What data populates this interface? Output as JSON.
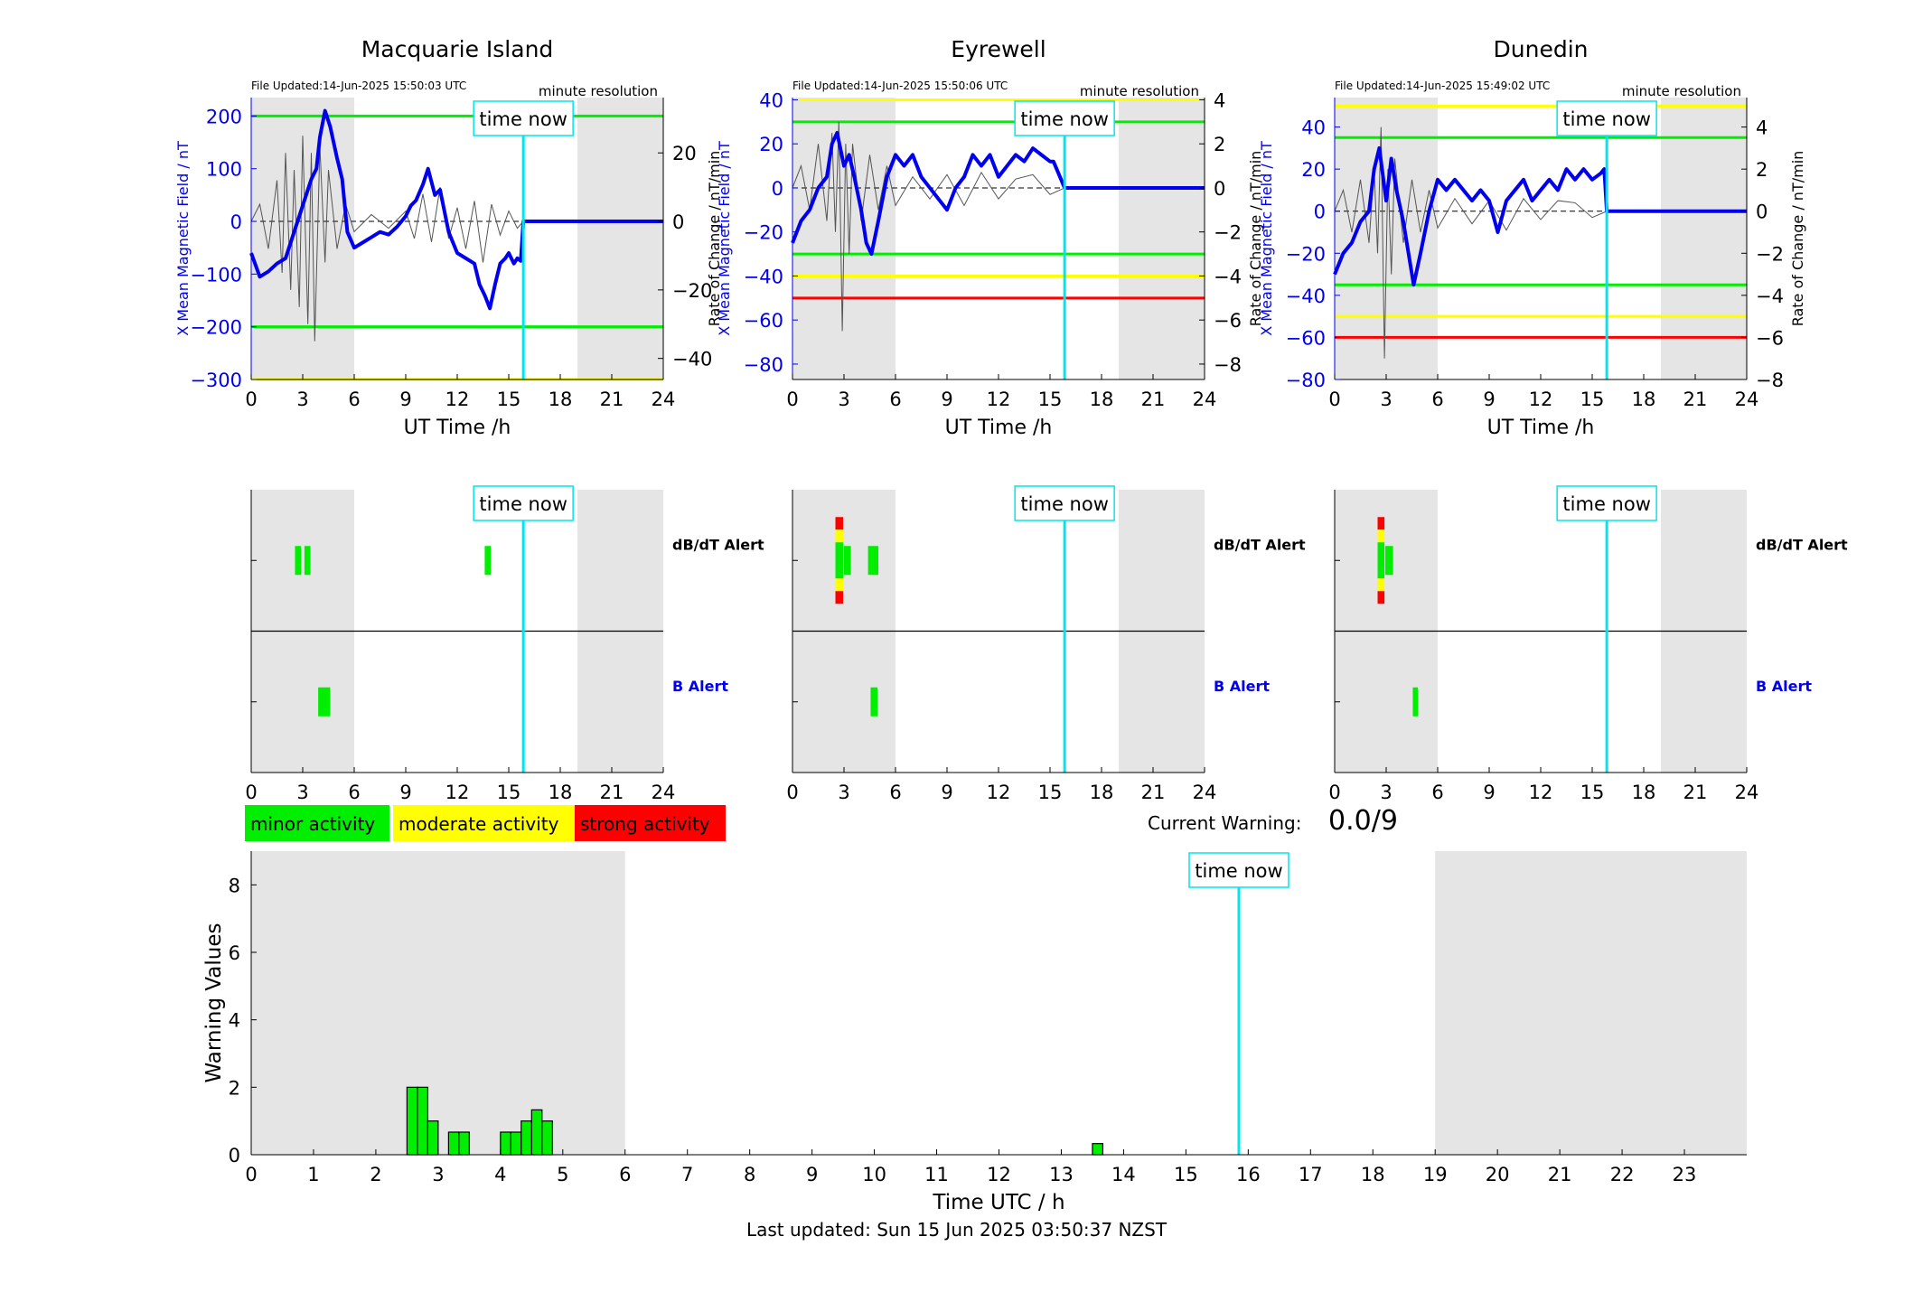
{
  "page": {
    "last_updated": "Last updated: Sun 15 Jun 2025 03:50:37 NZST",
    "current_warning_label": "Current Warning:",
    "current_warning_value": "0.0/9"
  },
  "colors": {
    "night_shade": "#e5e5e5",
    "time_now": "#00e5ee",
    "x_field_line": "#0000ee",
    "rate_line": "#555555",
    "minor": "#00ee00",
    "moderate": "#ffff00",
    "strong": "#ff0000",
    "b_alert_label": "#0000ee"
  },
  "legend": [
    {
      "label": "minor activity",
      "color": "#00ee00"
    },
    {
      "label": "moderate activity",
      "color": "#ffff00"
    },
    {
      "label": "strong activity",
      "color": "#ff0000"
    }
  ],
  "chart_data": [
    {
      "type": "line",
      "panel": "magnetometer",
      "station": "Macquarie Island",
      "title": "Macquarie Island",
      "file_updated": "File Updated:14-Jun-2025 15:50:03 UTC",
      "resolution_label": "minute resolution",
      "time_now_label": "time now",
      "time_now": 15.85,
      "night_shading": [
        [
          0,
          6
        ],
        [
          19,
          24
        ]
      ],
      "xlabel": "UT Time /h",
      "xlim": [
        0,
        24
      ],
      "xticks": [
        0,
        3,
        6,
        9,
        12,
        15,
        18,
        21,
        24
      ],
      "ylabel_left": "X Mean Magnetic Field / nT",
      "ylim_left": [
        -300,
        235
      ],
      "yticks_left": [
        -300,
        -200,
        -100,
        0,
        100,
        200
      ],
      "ylabel_right": "Rate of Change / nT/min",
      "ylim_right": [
        -46.15,
        36.15
      ],
      "yticks_right": [
        -40,
        -20,
        0,
        20
      ],
      "thresholds": [
        {
          "value": 200,
          "color": "#00ee00"
        },
        {
          "value": -200,
          "color": "#00ee00"
        },
        {
          "value": -300,
          "color": "#ffff00"
        }
      ],
      "series": [
        {
          "axis": "left",
          "x": [
            0,
            0.5,
            1,
            1.5,
            2,
            2.5,
            3,
            3.5,
            3.8,
            4,
            4.3,
            4.6,
            5,
            5.3,
            5.6,
            6,
            6.5,
            7,
            7.5,
            8,
            8.5,
            9,
            9.3,
            9.6,
            10,
            10.3,
            10.7,
            11,
            11.5,
            12,
            12.5,
            13,
            13.3,
            13.6,
            13.9,
            14.2,
            14.5,
            14.8,
            15,
            15.3,
            15.5,
            15.7,
            15.85,
            24
          ],
          "values": [
            -60,
            -105,
            -95,
            -80,
            -70,
            -20,
            30,
            80,
            100,
            160,
            210,
            180,
            120,
            80,
            -20,
            -50,
            -40,
            -30,
            -20,
            -25,
            -10,
            10,
            30,
            40,
            70,
            100,
            50,
            60,
            -20,
            -60,
            -70,
            -80,
            -120,
            -140,
            -165,
            -120,
            -80,
            -70,
            -60,
            -80,
            -70,
            -75,
            0,
            0
          ]
        },
        {
          "axis": "right",
          "x": [
            0,
            0.5,
            1,
            1.5,
            1.8,
            2,
            2.3,
            2.5,
            2.8,
            3,
            3.3,
            3.5,
            3.7,
            4,
            4.3,
            4.5,
            5,
            5.5,
            6,
            7,
            8,
            9,
            9.5,
            10,
            10.5,
            11,
            11.5,
            12,
            12.5,
            13,
            13.5,
            14,
            14.5,
            15,
            15.5,
            15.85,
            24
          ],
          "values": [
            0,
            5,
            -8,
            12,
            -15,
            20,
            -20,
            15,
            -25,
            25,
            -30,
            20,
            -35,
            22,
            -12,
            15,
            -8,
            5,
            -3,
            2,
            -2,
            3,
            -5,
            8,
            -6,
            10,
            -5,
            4,
            -8,
            6,
            -12,
            5,
            -4,
            3,
            -2,
            0,
            0
          ]
        }
      ]
    },
    {
      "type": "line",
      "panel": "magnetometer",
      "station": "Eyrewell",
      "title": "Eyrewell",
      "file_updated": "File Updated:14-Jun-2025 15:50:06 UTC",
      "resolution_label": "minute resolution",
      "time_now_label": "time now",
      "time_now": 15.85,
      "night_shading": [
        [
          0,
          6
        ],
        [
          19,
          24
        ]
      ],
      "xlabel": "UT Time /h",
      "xlim": [
        0,
        24
      ],
      "xticks": [
        0,
        3,
        6,
        9,
        12,
        15,
        18,
        21,
        24
      ],
      "ylabel_left": "X Mean Magnetic Field / nT",
      "ylim_left": [
        -87,
        41
      ],
      "yticks_left": [
        -80,
        -60,
        -40,
        -20,
        0,
        20,
        40
      ],
      "ylabel_right": "Rate of Change / nT/min",
      "ylim_right": [
        -8.7,
        4.1
      ],
      "yticks_right": [
        -8,
        -6,
        -4,
        -2,
        0,
        2,
        4
      ],
      "thresholds": [
        {
          "value": 40,
          "color": "#ffff00"
        },
        {
          "value": 30,
          "color": "#00ee00"
        },
        {
          "value": -30,
          "color": "#00ee00"
        },
        {
          "value": -40,
          "color": "#ffff00"
        },
        {
          "value": -50,
          "color": "#ff0000"
        }
      ],
      "series": [
        {
          "axis": "left",
          "x": [
            0,
            0.5,
            1,
            1.5,
            2,
            2.3,
            2.6,
            3,
            3.3,
            3.6,
            4,
            4.3,
            4.6,
            5,
            5.5,
            6,
            6.5,
            7,
            7.5,
            8,
            8.5,
            9,
            9.5,
            10,
            10.5,
            11,
            11.5,
            12,
            12.5,
            13,
            13.5,
            14,
            14.5,
            15,
            15.2,
            15.85,
            24
          ],
          "values": [
            -25,
            -15,
            -10,
            0,
            5,
            20,
            25,
            10,
            15,
            5,
            -10,
            -25,
            -30,
            -15,
            5,
            15,
            10,
            15,
            5,
            0,
            -5,
            -10,
            0,
            5,
            15,
            10,
            15,
            5,
            10,
            15,
            12,
            18,
            15,
            12,
            12,
            0,
            0
          ]
        },
        {
          "axis": "right",
          "x": [
            0,
            0.5,
            1,
            1.5,
            2,
            2.3,
            2.5,
            2.7,
            2.9,
            3.1,
            3.3,
            3.5,
            4,
            4.5,
            5,
            5.5,
            6,
            7,
            8,
            9,
            10,
            11,
            12,
            13,
            14,
            15,
            15.85,
            24
          ],
          "values": [
            0,
            1,
            -1,
            2,
            -1.5,
            2.5,
            -2,
            3,
            -6.5,
            2,
            -3,
            2,
            -1.5,
            1.5,
            -1,
            1,
            -0.8,
            0.5,
            -0.5,
            0.6,
            -0.8,
            0.7,
            -0.5,
            0.4,
            0.6,
            -0.3,
            0,
            0
          ]
        }
      ]
    },
    {
      "type": "line",
      "panel": "magnetometer",
      "station": "Dunedin",
      "title": "Dunedin",
      "file_updated": "File Updated:14-Jun-2025 15:49:02 UTC",
      "resolution_label": "minute resolution",
      "time_now_label": "time now",
      "time_now": 15.85,
      "night_shading": [
        [
          0,
          6
        ],
        [
          19,
          24
        ]
      ],
      "xlabel": "UT Time /h",
      "xlim": [
        0,
        24
      ],
      "xticks": [
        0,
        3,
        6,
        9,
        12,
        15,
        18,
        21,
        24
      ],
      "ylabel_left": "X Mean Magnetic Field / nT",
      "ylim_left": [
        -80,
        54
      ],
      "yticks_left": [
        -80,
        -60,
        -40,
        -20,
        0,
        20,
        40
      ],
      "ylabel_right": "Rate of Change / nT/min",
      "ylim_right": [
        -8.0,
        5.4
      ],
      "yticks_right": [
        -8,
        -6,
        -4,
        -2,
        0,
        2,
        4
      ],
      "thresholds": [
        {
          "value": 50,
          "color": "#ffff00"
        },
        {
          "value": 35,
          "color": "#00ee00"
        },
        {
          "value": -35,
          "color": "#00ee00"
        },
        {
          "value": -50,
          "color": "#ffff00"
        },
        {
          "value": -60,
          "color": "#ff0000"
        }
      ],
      "series": [
        {
          "axis": "left",
          "x": [
            0,
            0.5,
            1,
            1.5,
            2,
            2.3,
            2.6,
            3,
            3.3,
            3.6,
            4,
            4.3,
            4.6,
            5,
            5.5,
            6,
            6.5,
            7,
            7.5,
            8,
            8.5,
            9,
            9.5,
            10,
            10.5,
            11,
            11.5,
            12,
            12.5,
            13,
            13.5,
            14,
            14.5,
            15,
            15.5,
            15.7,
            15.85,
            24
          ],
          "values": [
            -30,
            -20,
            -15,
            -5,
            0,
            20,
            30,
            5,
            25,
            10,
            -5,
            -20,
            -35,
            -20,
            0,
            15,
            10,
            15,
            10,
            5,
            10,
            5,
            -10,
            5,
            10,
            15,
            5,
            10,
            15,
            10,
            20,
            15,
            20,
            15,
            18,
            20,
            0,
            0
          ]
        },
        {
          "axis": "right",
          "x": [
            0,
            0.5,
            1,
            1.5,
            2,
            2.3,
            2.5,
            2.7,
            2.9,
            3.1,
            3.3,
            3.5,
            4,
            4.5,
            5,
            5.5,
            6,
            7,
            8,
            9,
            10,
            11,
            12,
            13,
            14,
            15,
            15.85,
            24
          ],
          "values": [
            0,
            1,
            -1,
            1.5,
            -1.5,
            2,
            -2,
            4,
            -7,
            2,
            -3,
            2.5,
            -1.5,
            1.5,
            -1,
            1,
            -0.8,
            0.6,
            -0.6,
            0.5,
            -0.9,
            0.6,
            -0.4,
            0.5,
            0.4,
            -0.3,
            0,
            0
          ]
        }
      ]
    },
    {
      "type": "bar",
      "panel": "alerts",
      "station": "Macquarie Island",
      "time_now_label": "time now",
      "time_now": 15.85,
      "night_shading": [
        [
          0,
          6
        ],
        [
          19,
          24
        ]
      ],
      "xlim": [
        0,
        24
      ],
      "xticks": [
        0,
        3,
        6,
        9,
        12,
        15,
        18,
        21,
        24
      ],
      "rows": [
        {
          "label": "dB/dT Alert",
          "bars": [
            {
              "start": 2.55,
              "end": 2.9,
              "levels": [
                "minor"
              ]
            },
            {
              "start": 3.1,
              "end": 3.45,
              "levels": [
                "minor"
              ]
            },
            {
              "start": 13.6,
              "end": 13.95,
              "levels": [
                "minor"
              ]
            }
          ]
        },
        {
          "label": "B Alert",
          "bars": [
            {
              "start": 3.9,
              "end": 4.6,
              "levels": [
                "minor"
              ]
            }
          ]
        }
      ]
    },
    {
      "type": "bar",
      "panel": "alerts",
      "station": "Eyrewell",
      "time_now_label": "time now",
      "time_now": 15.85,
      "night_shading": [
        [
          0,
          6
        ],
        [
          19,
          24
        ]
      ],
      "xlim": [
        0,
        24
      ],
      "xticks": [
        0,
        3,
        6,
        9,
        12,
        15,
        18,
        21,
        24
      ],
      "rows": [
        {
          "label": "dB/dT Alert",
          "bars": [
            {
              "start": 2.5,
              "end": 2.95,
              "levels": [
                "minor",
                "moderate",
                "strong"
              ]
            },
            {
              "start": 3.0,
              "end": 3.4,
              "levels": [
                "minor"
              ]
            },
            {
              "start": 4.4,
              "end": 5.0,
              "levels": [
                "minor"
              ]
            }
          ]
        },
        {
          "label": "B Alert",
          "bars": [
            {
              "start": 4.55,
              "end": 4.95,
              "levels": [
                "minor"
              ]
            }
          ]
        }
      ]
    },
    {
      "type": "bar",
      "panel": "alerts",
      "station": "Dunedin",
      "time_now_label": "time now",
      "time_now": 15.85,
      "night_shading": [
        [
          0,
          6
        ],
        [
          19,
          24
        ]
      ],
      "xlim": [
        0,
        24
      ],
      "xticks": [
        0,
        3,
        6,
        9,
        12,
        15,
        18,
        21,
        24
      ],
      "rows": [
        {
          "label": "dB/dT Alert",
          "bars": [
            {
              "start": 2.5,
              "end": 2.9,
              "levels": [
                "minor",
                "moderate",
                "strong"
              ]
            },
            {
              "start": 2.95,
              "end": 3.4,
              "levels": [
                "minor"
              ]
            }
          ]
        },
        {
          "label": "B Alert",
          "bars": [
            {
              "start": 4.55,
              "end": 4.85,
              "levels": [
                "minor"
              ]
            }
          ]
        }
      ]
    },
    {
      "type": "bar",
      "panel": "warning",
      "time_now_label": "time now",
      "time_now": 15.85,
      "night_shading": [
        [
          0,
          6
        ],
        [
          19,
          24
        ]
      ],
      "xlabel": "Time UTC / h",
      "ylabel": "Warning Values",
      "xlim": [
        0,
        24
      ],
      "ylim": [
        0,
        9
      ],
      "xticks": [
        0,
        1,
        2,
        3,
        4,
        5,
        6,
        7,
        8,
        9,
        10,
        11,
        12,
        13,
        14,
        15,
        16,
        17,
        18,
        19,
        20,
        21,
        22,
        23
      ],
      "yticks": [
        0,
        2,
        4,
        6,
        8
      ],
      "bar_width": 0.1667,
      "x": [
        2.5,
        2.667,
        2.833,
        3.167,
        3.333,
        4.0,
        4.167,
        4.333,
        4.5,
        4.667,
        13.5
      ],
      "values": [
        2.0,
        2.0,
        1.0,
        0.67,
        0.67,
        0.67,
        0.67,
        1.0,
        1.33,
        1.0,
        0.33
      ]
    }
  ]
}
